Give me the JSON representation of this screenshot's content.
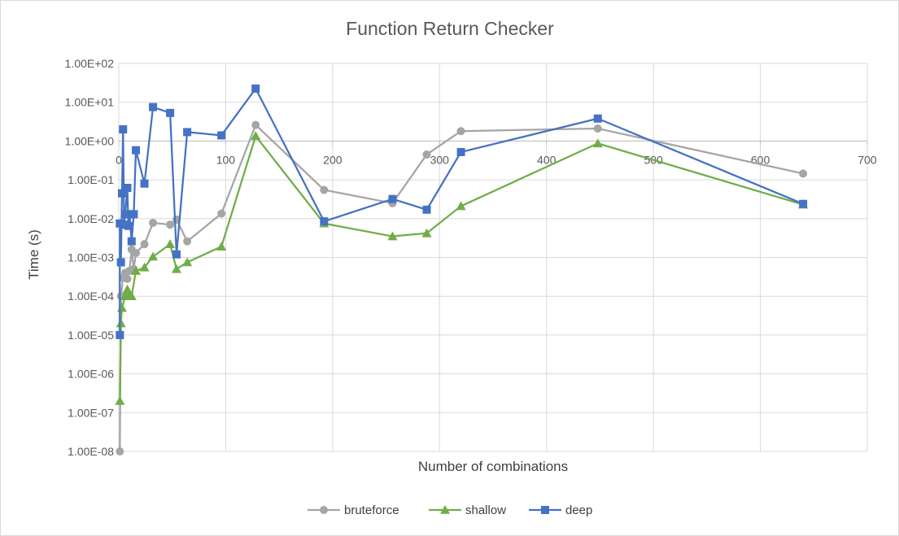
{
  "chart_data": {
    "type": "scatter",
    "title": "Function Return Checker",
    "xlabel": "Number of combinations",
    "ylabel": "Time (s)",
    "xlim": [
      0,
      700
    ],
    "ylim": [
      1e-08,
      100
    ],
    "y_scale": "log",
    "x_ticks": [
      0,
      100,
      200,
      300,
      400,
      500,
      600,
      700
    ],
    "x_tick_labels": [
      "0",
      "100",
      "200",
      "300",
      "400",
      "500",
      "600",
      "700"
    ],
    "y_ticks": [
      1e-08,
      1e-07,
      1e-06,
      1e-05,
      0.0001,
      0.001,
      0.01,
      0.1,
      1,
      10,
      100
    ],
    "y_tick_labels": [
      "1.00E-08",
      "1.00E-07",
      "1.00E-06",
      "1.00E-05",
      "1.00E-04",
      "1.00E-03",
      "1.00E-02",
      "1.00E-01",
      "1.00E+00",
      "1.00E+01",
      "1.00E+02"
    ],
    "grid": true,
    "legend_position": "bottom",
    "series": [
      {
        "name": "bruteforce",
        "color": "#a5a5a5",
        "marker": "circle",
        "points": [
          [
            1,
            1e-08
          ],
          [
            2,
            0.0001
          ],
          [
            4,
            0.0003
          ],
          [
            6,
            0.0004
          ],
          [
            8,
            0.00028
          ],
          [
            10,
            0.00045
          ],
          [
            12,
            0.0016
          ],
          [
            14,
            0.0005
          ],
          [
            16,
            0.0013
          ],
          [
            24,
            0.0022
          ],
          [
            32,
            0.0078
          ],
          [
            48,
            0.007
          ],
          [
            54,
            0.0095
          ],
          [
            64,
            0.0026
          ],
          [
            96,
            0.0135
          ],
          [
            128,
            2.6
          ],
          [
            192,
            0.055
          ],
          [
            256,
            0.025
          ],
          [
            288,
            0.45
          ],
          [
            320,
            1.8
          ],
          [
            448,
            2.1
          ],
          [
            640,
            0.145
          ]
        ]
      },
      {
        "name": "shallow",
        "color": "#70ad47",
        "marker": "triangle",
        "points": [
          [
            1,
            2e-07
          ],
          [
            2,
            2e-05
          ],
          [
            3,
            5e-05
          ],
          [
            6,
            0.0001
          ],
          [
            8,
            0.00015
          ],
          [
            10,
            0.00011
          ],
          [
            12,
            0.0001
          ],
          [
            16,
            0.00045
          ],
          [
            24,
            0.00055
          ],
          [
            32,
            0.00105
          ],
          [
            48,
            0.0022
          ],
          [
            54,
            0.0005
          ],
          [
            64,
            0.00075
          ],
          [
            96,
            0.0019
          ],
          [
            128,
            1.35
          ],
          [
            192,
            0.0075
          ],
          [
            256,
            0.0035
          ],
          [
            288,
            0.0042
          ],
          [
            320,
            0.021
          ],
          [
            448,
            0.87
          ],
          [
            640,
            0.023
          ]
        ]
      },
      {
        "name": "deep",
        "color": "#4472c4",
        "marker": "square",
        "points": [
          [
            1,
            1e-05
          ],
          [
            1,
            0.0075
          ],
          [
            2,
            0.00075
          ],
          [
            3,
            0.045
          ],
          [
            4,
            2.0
          ],
          [
            5,
            0.007
          ],
          [
            6,
            0.013
          ],
          [
            8,
            0.062
          ],
          [
            9,
            0.0065
          ],
          [
            10,
            0.013
          ],
          [
            12,
            0.0026
          ],
          [
            14,
            0.013
          ],
          [
            16,
            0.58
          ],
          [
            24,
            0.08
          ],
          [
            32,
            7.5
          ],
          [
            48,
            5.3
          ],
          [
            54,
            0.0012
          ],
          [
            64,
            1.7
          ],
          [
            96,
            1.4
          ],
          [
            128,
            22.5
          ],
          [
            192,
            0.0085
          ],
          [
            256,
            0.032
          ],
          [
            288,
            0.017
          ],
          [
            320,
            0.52
          ],
          [
            448,
            3.8
          ],
          [
            640,
            0.024
          ]
        ]
      }
    ]
  }
}
